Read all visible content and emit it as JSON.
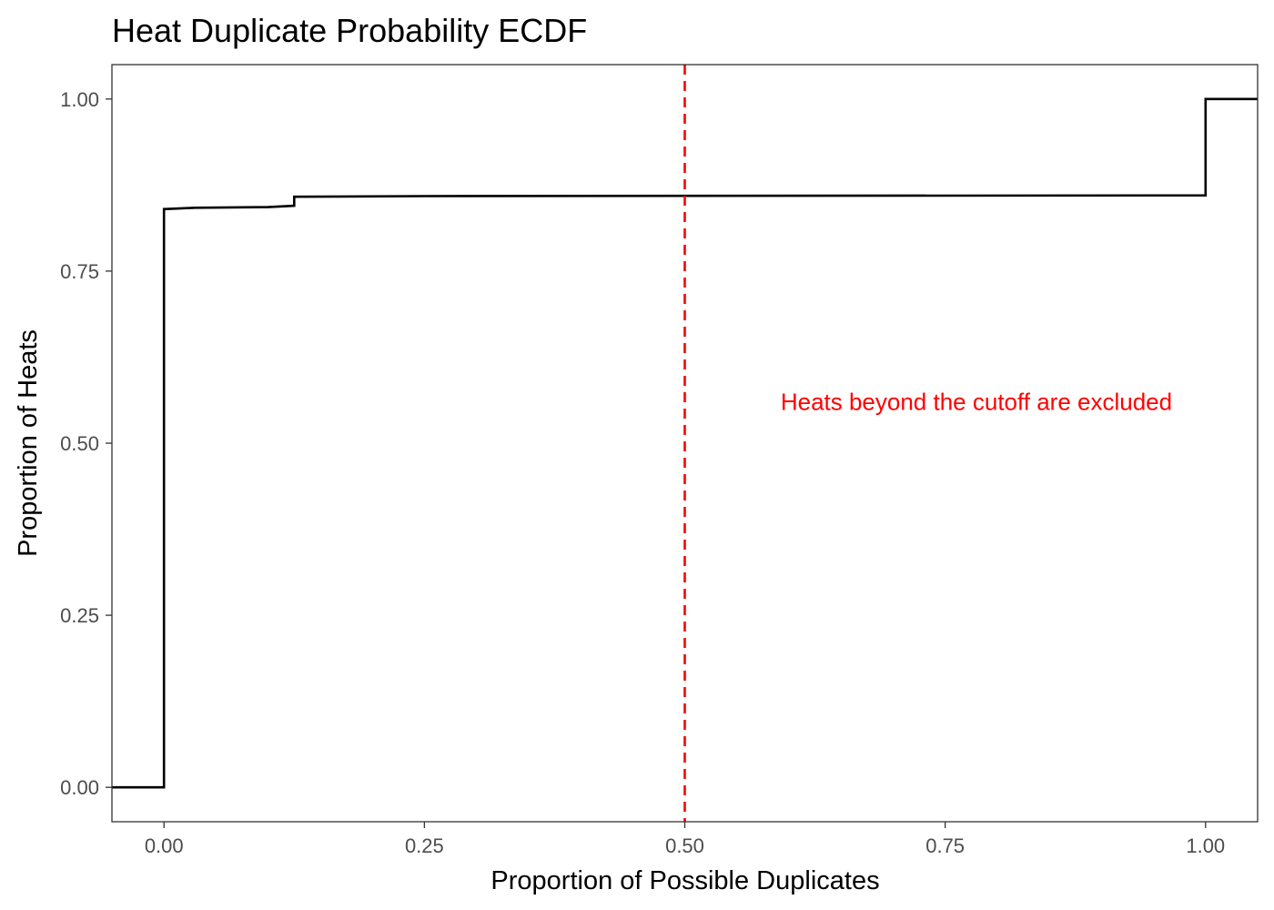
{
  "chart_data": {
    "type": "line",
    "subtype": "ecdf-step",
    "title": "Heat Duplicate Probability ECDF",
    "xlabel": "Proportion of Possible Duplicates",
    "ylabel": "Proportion of Heats",
    "xlim": [
      -0.05,
      1.05
    ],
    "ylim": [
      -0.05,
      1.05
    ],
    "x_ticks": [
      0,
      0.25,
      0.5,
      0.75,
      1
    ],
    "x_tick_labels": [
      "0.00",
      "0.25",
      "0.50",
      "0.75",
      "1.00"
    ],
    "y_ticks": [
      0,
      0.25,
      0.5,
      0.75,
      1
    ],
    "y_tick_labels": [
      "0.00",
      "0.25",
      "0.50",
      "0.75",
      "1.00"
    ],
    "grid": false,
    "panel_border": true,
    "series": [
      {
        "color": "#000000",
        "points": [
          {
            "x": -0.05,
            "y": 0.0
          },
          {
            "x": 0.0,
            "y": 0.0
          },
          {
            "x": 0.0,
            "y": 0.84
          },
          {
            "x": 0.03,
            "y": 0.842
          },
          {
            "x": 0.1,
            "y": 0.843
          },
          {
            "x": 0.125,
            "y": 0.845
          },
          {
            "x": 0.125,
            "y": 0.858
          },
          {
            "x": 0.25,
            "y": 0.859
          },
          {
            "x": 1.0,
            "y": 0.86
          },
          {
            "x": 1.0,
            "y": 1.0
          },
          {
            "x": 1.05,
            "y": 1.0
          }
        ]
      }
    ],
    "reference_line": {
      "orientation": "vertical",
      "x": 0.5,
      "style": "dashed",
      "color": "#ff0000"
    },
    "annotations": [
      {
        "text": "Heats beyond the cutoff are excluded",
        "x": 0.78,
        "y": 0.56,
        "color": "#ff0000"
      }
    ]
  }
}
